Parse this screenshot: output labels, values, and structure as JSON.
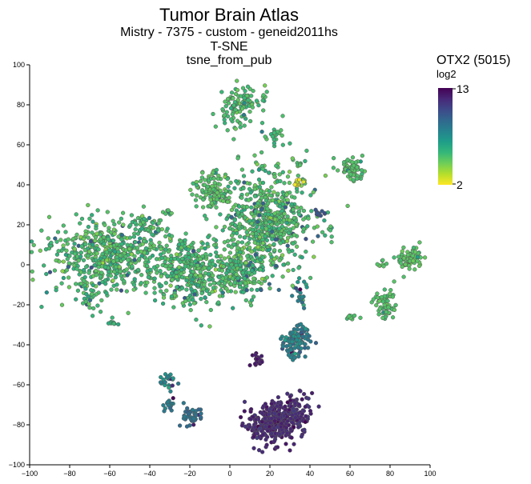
{
  "chart_data": {
    "type": "scatter",
    "title": "Tumor Brain Atlas",
    "subtitle_lines": [
      "Mistry - 7375 - custom - geneid2011hs",
      "T-SNE",
      "tsne_from_pub"
    ],
    "xlabel": "",
    "ylabel": "",
    "xlim": [
      -100,
      100
    ],
    "ylim": [
      -100,
      100
    ],
    "x_ticks": [
      -100,
      -80,
      -60,
      -40,
      -20,
      0,
      20,
      40,
      60,
      80,
      100
    ],
    "y_ticks": [
      -100,
      -80,
      -60,
      -40,
      -20,
      0,
      20,
      40,
      60,
      80,
      100
    ],
    "x_tick_labels": [
      "−100",
      "−80",
      "−60",
      "−40",
      "−20",
      "0",
      "20",
      "40",
      "60",
      "80",
      "100"
    ],
    "y_tick_labels": [
      "−100",
      "−80",
      "−60",
      "−40",
      "−20",
      "0",
      "20",
      "40",
      "60",
      "80",
      "100"
    ],
    "grid": false,
    "colorscale": {
      "title": "OTX2 (5015)",
      "unit": "log2",
      "min": 2,
      "max": 13,
      "min_label": "2",
      "max_label": "13",
      "colors": [
        "#fde725",
        "#b5de2b",
        "#6ece58",
        "#35b779",
        "#1f9e89",
        "#26828e",
        "#31688e",
        "#3e4989",
        "#482878",
        "#440154"
      ],
      "marker_outline": "#555555"
    },
    "clusters": [
      {
        "cx": 18,
        "cy": 22,
        "sx": 12,
        "sy": 13,
        "n": 620,
        "value": 5.2,
        "spread": 1.1
      },
      {
        "cx": -60,
        "cy": 4,
        "sx": 15,
        "sy": 9,
        "n": 560,
        "value": 5.3,
        "spread": 1.1
      },
      {
        "cx": -8,
        "cy": 38,
        "sx": 5,
        "sy": 4,
        "n": 110,
        "value": 5.0,
        "spread": 0.6
      },
      {
        "cx": 5,
        "cy": 79,
        "sx": 5,
        "sy": 5,
        "n": 110,
        "value": 5.2,
        "spread": 0.7
      },
      {
        "cx": 20,
        "cy": -80,
        "sx": 6,
        "sy": 5,
        "n": 260,
        "value": 11.9,
        "spread": 0.7
      },
      {
        "cx": 31,
        "cy": -75,
        "sx": 5,
        "sy": 5,
        "n": 150,
        "value": 11.8,
        "spread": 0.7
      },
      {
        "cx": 33,
        "cy": -38,
        "sx": 3.5,
        "sy": 4,
        "n": 110,
        "value": 8.2,
        "spread": 1.5
      },
      {
        "cx": 15,
        "cy": -48,
        "sx": 1.5,
        "sy": 1.5,
        "n": 22,
        "value": 12.3,
        "spread": 0.3
      },
      {
        "cx": -19,
        "cy": -76,
        "sx": 2.5,
        "sy": 2.5,
        "n": 40,
        "value": 9.0,
        "spread": 0.7
      },
      {
        "cx": -31,
        "cy": -58,
        "sx": 2,
        "sy": 2,
        "n": 26,
        "value": 7.5,
        "spread": 1.0
      },
      {
        "cx": -30,
        "cy": -70,
        "sx": 1.5,
        "sy": 2,
        "n": 16,
        "value": 8.5,
        "spread": 1.0
      },
      {
        "cx": 62,
        "cy": 47,
        "sx": 3,
        "sy": 3,
        "n": 65,
        "value": 5.0,
        "spread": 0.5
      },
      {
        "cx": 90,
        "cy": 3,
        "sx": 3,
        "sy": 3,
        "n": 70,
        "value": 4.9,
        "spread": 0.5
      },
      {
        "cx": 77,
        "cy": -20,
        "sx": 2.5,
        "sy": 4,
        "n": 60,
        "value": 5.0,
        "spread": 0.5
      },
      {
        "cx": 61,
        "cy": -26,
        "sx": 1.5,
        "sy": 1.2,
        "n": 12,
        "value": 5.0,
        "spread": 0.4
      },
      {
        "cx": 22,
        "cy": 65,
        "sx": 2,
        "sy": 2,
        "n": 22,
        "value": 5.4,
        "spread": 0.7
      },
      {
        "cx": -20,
        "cy": -3,
        "sx": 9,
        "sy": 9,
        "n": 340,
        "value": 5.3,
        "spread": 1.0
      },
      {
        "cx": 5,
        "cy": -5,
        "sx": 6,
        "sy": 6,
        "n": 170,
        "value": 5.3,
        "spread": 1.0
      },
      {
        "cx": 44,
        "cy": 26,
        "sx": 1.5,
        "sy": 1,
        "n": 14,
        "value": 10.5,
        "spread": 0.8
      },
      {
        "cx": 35,
        "cy": -15,
        "sx": 2,
        "sy": 4,
        "n": 22,
        "value": 7.5,
        "spread": 2.0
      },
      {
        "cx": -59,
        "cy": -29,
        "sx": 1.2,
        "sy": 1,
        "n": 10,
        "value": 5.6,
        "spread": 0.8
      },
      {
        "cx": 34,
        "cy": 41,
        "sx": 1.5,
        "sy": 1,
        "n": 12,
        "value": 2.4,
        "spread": 0.3
      },
      {
        "cx": 51,
        "cy": 17,
        "sx": 1,
        "sy": 1,
        "n": 6,
        "value": 5.0,
        "spread": 0.4
      },
      {
        "cx": 76,
        "cy": 0,
        "sx": 1.5,
        "sy": 1,
        "n": 8,
        "value": 5.0,
        "spread": 0.4
      },
      {
        "cx": 35,
        "cy": 50,
        "sx": 1,
        "sy": 1,
        "n": 5,
        "value": 5.2,
        "spread": 0.4
      },
      {
        "cx": 17,
        "cy": 84,
        "sx": 1,
        "sy": 1,
        "n": 6,
        "value": 5.2,
        "spread": 0.6
      },
      {
        "cx": -31,
        "cy": 26,
        "sx": 1.5,
        "sy": 1,
        "n": 8,
        "value": 5.2,
        "spread": 0.5
      },
      {
        "cx": 15,
        "cy": 47,
        "sx": 1,
        "sy": 1,
        "n": 4,
        "value": 5.2,
        "spread": 0.5
      },
      {
        "cx": -70,
        "cy": -18,
        "sx": 3,
        "sy": 3,
        "n": 20,
        "value": 5.5,
        "spread": 1.0
      },
      {
        "cx": -40,
        "cy": 20,
        "sx": 4,
        "sy": 3,
        "n": 40,
        "value": 5.2,
        "spread": 0.8
      }
    ]
  }
}
